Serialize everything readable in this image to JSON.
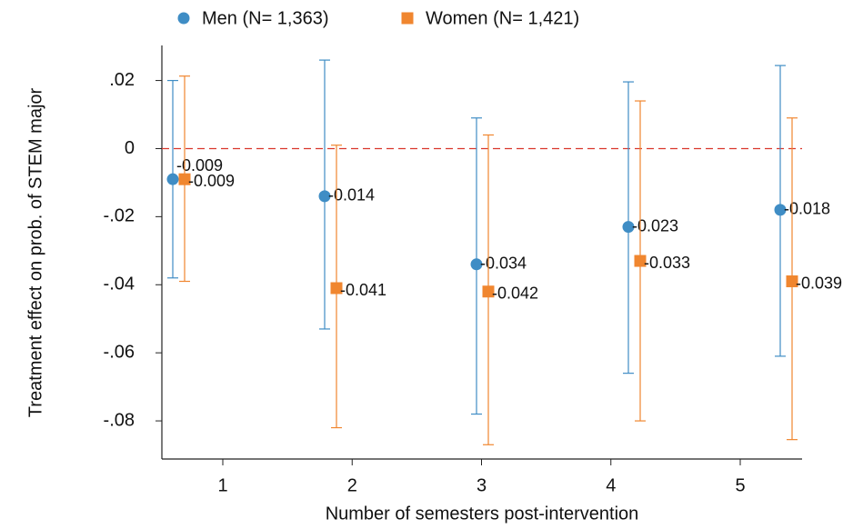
{
  "chart_data": {
    "type": "errorbar",
    "x_label": "Number of semesters post-intervention",
    "y_label": "Treatment effect on prob. of STEM major",
    "categories": [
      "1",
      "2",
      "3",
      "4",
      "5"
    ],
    "series": [
      {
        "name": "Men (N= 1,363)",
        "color": "#3f8dc5",
        "marker": "circle",
        "values": [
          -0.009,
          -0.014,
          -0.034,
          -0.023,
          -0.018
        ],
        "lower": [
          -0.038,
          -0.053,
          -0.078,
          -0.066,
          -0.061
        ],
        "upper": [
          0.02,
          0.026,
          0.009,
          0.0196,
          0.0244
        ]
      },
      {
        "name": "Women (N= 1,421)",
        "color": "#f0862f",
        "marker": "square",
        "values": [
          -0.009,
          -0.041,
          -0.042,
          -0.033,
          -0.039
        ],
        "lower": [
          -0.039,
          -0.082,
          -0.087,
          -0.08,
          -0.0855
        ],
        "upper": [
          0.0213,
          0.001,
          0.004,
          0.014,
          0.009
        ]
      }
    ],
    "reference_line": 0,
    "ylim": [
      -0.0912,
      0.0303
    ],
    "yticks": [
      {
        "value": 0.02,
        "label": ".02"
      },
      0,
      {
        "value": -0.02,
        "label": "-.02"
      },
      {
        "value": -0.04,
        "label": "-.04"
      },
      {
        "value": -0.06,
        "label": "-.06"
      },
      {
        "value": -0.08,
        "label": "-.08"
      }
    ],
    "legend": "top"
  }
}
